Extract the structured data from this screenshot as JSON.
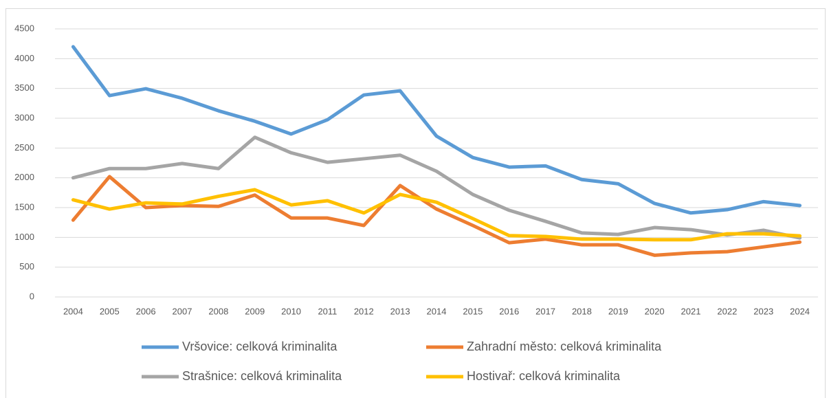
{
  "chart_data": {
    "type": "line",
    "categories": [
      "2004",
      "2005",
      "2006",
      "2007",
      "2008",
      "2009",
      "2010",
      "2011",
      "2012",
      "2013",
      "2014",
      "2015",
      "2016",
      "2017",
      "2018",
      "2019",
      "2020",
      "2021",
      "2022",
      "2023",
      "2024"
    ],
    "series": [
      {
        "name": "Vršovice: celková kriminalita",
        "color": "#5b9bd5",
        "values": [
          4200,
          3380,
          3495,
          3335,
          3125,
          2950,
          2735,
          2975,
          3390,
          3460,
          2700,
          2340,
          2180,
          2200,
          1970,
          1900,
          1570,
          1410,
          1465,
          1600,
          1535
        ]
      },
      {
        "name": "Zahradní město: celková kriminalita",
        "color": "#ed7d31",
        "values": [
          1290,
          2020,
          1500,
          1535,
          1520,
          1710,
          1325,
          1325,
          1200,
          1870,
          1475,
          1200,
          910,
          970,
          875,
          875,
          700,
          740,
          760,
          840,
          920
        ]
      },
      {
        "name": "Strašnice: celková kriminalita",
        "color": "#a5a5a5",
        "values": [
          2000,
          2155,
          2155,
          2240,
          2155,
          2680,
          2420,
          2260,
          2320,
          2380,
          2110,
          1720,
          1455,
          1270,
          1075,
          1050,
          1165,
          1130,
          1040,
          1120,
          990
        ]
      },
      {
        "name": "Hostivař: celková kriminalita",
        "color": "#ffc000",
        "values": [
          1630,
          1475,
          1580,
          1560,
          1690,
          1800,
          1545,
          1615,
          1410,
          1720,
          1590,
          1315,
          1030,
          1015,
          970,
          970,
          960,
          960,
          1060,
          1060,
          1025
        ]
      }
    ],
    "ylim": [
      0,
      4500
    ],
    "yticks": [
      0,
      500,
      1000,
      1500,
      2000,
      2500,
      3000,
      3500,
      4000,
      4500
    ],
    "grid": true,
    "legend": "bottom"
  }
}
